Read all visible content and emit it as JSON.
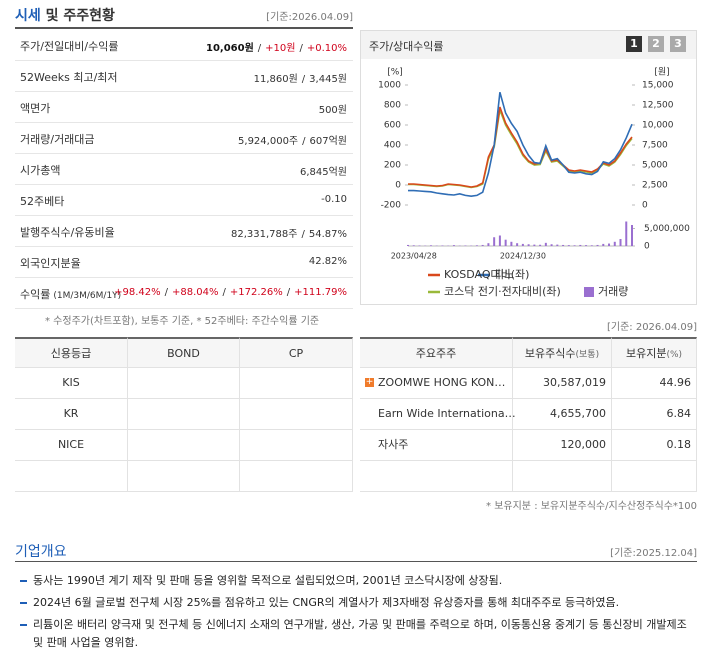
{
  "header": {
    "title_highlight": "시세",
    "title_rest": "및 주주현황",
    "date": "[기준:2026.04.09]"
  },
  "quote_table": {
    "rows": [
      {
        "label": "주가/전일대비/수익률",
        "parts": [
          {
            "text": "10,060원",
            "tone": "strong"
          },
          {
            "text": "/"
          },
          {
            "text": "+10원",
            "tone": "up"
          },
          {
            "text": "/"
          },
          {
            "text": "+0.10%",
            "tone": "up"
          }
        ]
      },
      {
        "label": "52Weeks 최고/최저",
        "parts": [
          {
            "text": "11,860원"
          },
          {
            "text": "/"
          },
          {
            "text": "3,445원"
          }
        ]
      },
      {
        "label": "액면가",
        "parts": [
          {
            "text": "500원"
          }
        ]
      },
      {
        "label": "거래량/거래대금",
        "parts": [
          {
            "text": "5,924,000주"
          },
          {
            "text": "/"
          },
          {
            "text": "607억원"
          }
        ]
      },
      {
        "label": "시가총액",
        "parts": [
          {
            "text": "6,845억원"
          }
        ]
      },
      {
        "label": "52주베타",
        "parts": [
          {
            "text": "-0.10"
          }
        ]
      },
      {
        "label": "발행주식수/유동비율",
        "parts": [
          {
            "text": "82,331,788주"
          },
          {
            "text": "/"
          },
          {
            "text": "54.87%"
          }
        ]
      },
      {
        "label": "외국인지분율",
        "parts": [
          {
            "text": "42.82%"
          }
        ]
      },
      {
        "label": "수익률",
        "sublabel": "(1M/3M/6M/1Y)",
        "parts": [
          {
            "text": "+98.42%",
            "tone": "up"
          },
          {
            "text": "/"
          },
          {
            "text": "+88.04%",
            "tone": "up"
          },
          {
            "text": "/"
          },
          {
            "text": "+172.26%",
            "tone": "up"
          },
          {
            "text": "/"
          },
          {
            "text": "+111.79%",
            "tone": "up"
          }
        ]
      }
    ],
    "note": "* 수정주가(차트포함), 보통주 기준, * 52주베타: 주간수익률 기준"
  },
  "price_chart": {
    "title": "주가/상대수익률",
    "buttons": [
      "1",
      "2",
      "3"
    ],
    "chart_data": {
      "type": "line",
      "y_unit": "[%]",
      "y2_unit": "[원]",
      "x": [
        null,
        "2023/04/28",
        null,
        null,
        null,
        null,
        null,
        null,
        null,
        null,
        null,
        null,
        null,
        null,
        null,
        null,
        null,
        null,
        null,
        null,
        "2024/12/30",
        null,
        null,
        null,
        null,
        null,
        null,
        null,
        null,
        null,
        null,
        null,
        null,
        null,
        null,
        null,
        null,
        null,
        null,
        null
      ],
      "ylim": [
        -200,
        1000
      ],
      "yticks": [
        -200,
        0,
        200,
        400,
        600,
        800,
        1000
      ],
      "y2lim": [
        0,
        15000
      ],
      "y2ticks": [
        0,
        {
          "value": 2500,
          "label": "2,500"
        },
        {
          "value": 5000,
          "label": "5,000"
        },
        {
          "value": 7500,
          "label": "7,500"
        },
        {
          "value": 10000,
          "label": "10,000"
        },
        {
          "value": 12500,
          "label": "12,500"
        },
        {
          "value": 15000,
          "label": "15,000"
        }
      ],
      "y3lim": [
        0,
        8000000
      ],
      "y3ticks": [
        0,
        {
          "value": 5000000,
          "label": "5,000,000"
        }
      ],
      "series": [
        {
          "name": "코스닥 전기·전자대비(좌)",
          "color": "#9ab93a",
          "type": "line",
          "axis": "y",
          "values": [
            5,
            5,
            0,
            -5,
            -10,
            -15,
            -10,
            5,
            0,
            -5,
            -15,
            -25,
            -15,
            10,
            260,
            380,
            750,
            600,
            500,
            410,
            295,
            230,
            200,
            205,
            340,
            230,
            240,
            190,
            140,
            130,
            140,
            130,
            120,
            150,
            210,
            190,
            230,
            305,
            395,
            465
          ]
        },
        {
          "name": "KOSDAQ대비(좌)",
          "color": "#d9481c",
          "type": "line",
          "axis": "y",
          "values": [
            10,
            10,
            5,
            0,
            -5,
            -10,
            -5,
            10,
            5,
            0,
            -10,
            -20,
            -10,
            20,
            280,
            400,
            780,
            620,
            520,
            430,
            310,
            240,
            210,
            220,
            360,
            240,
            250,
            200,
            150,
            140,
            150,
            140,
            130,
            160,
            220,
            200,
            240,
            320,
            410,
            480
          ]
        },
        {
          "name": "피노",
          "color": "#2f6db5",
          "type": "line",
          "axis": "y2",
          "values": [
            1800,
            1800,
            1750,
            1700,
            1650,
            1500,
            1400,
            1300,
            1250,
            1400,
            1200,
            1100,
            1200,
            1600,
            4000,
            7500,
            14100,
            11500,
            10200,
            9200,
            7500,
            6200,
            5300,
            5200,
            7400,
            5600,
            5800,
            5000,
            4100,
            4000,
            4100,
            3900,
            3800,
            4200,
            5400,
            5200,
            5800,
            6900,
            8400,
            10100
          ]
        },
        {
          "name": "거래량",
          "color": "#9a6fd0",
          "type": "bar",
          "axis": "y3",
          "values": [
            300000,
            200000,
            150000,
            100000,
            200000,
            100000,
            150000,
            100000,
            250000,
            100000,
            150000,
            100000,
            200000,
            300000,
            800000,
            2500000,
            3000000,
            1800000,
            1200000,
            800000,
            600000,
            500000,
            400000,
            350000,
            900000,
            500000,
            400000,
            300000,
            250000,
            200000,
            300000,
            250000,
            200000,
            300000,
            600000,
            700000,
            1200000,
            2000000,
            7000000,
            6000000
          ]
        }
      ]
    }
  },
  "shareholder_date": "[기준: 2026.04.09]",
  "credit_table": {
    "headers": [
      "신용등급",
      "BOND",
      "CP"
    ],
    "rows": [
      "KIS",
      "KR",
      "NICE"
    ]
  },
  "shareholder_table": {
    "headers": [
      {
        "text": "주요주주"
      },
      {
        "text": "보유주식수",
        "sub": "(보통)"
      },
      {
        "text": "보유지분",
        "sub": "(%)"
      }
    ],
    "rows": [
      {
        "name": "ZOOMWE HONG KON…",
        "shares": "30,587,019",
        "stake": "44.96",
        "expandable": true
      },
      {
        "name": "Earn Wide Internationa…",
        "shares": "4,655,700",
        "stake": "6.84"
      },
      {
        "name": "자사주",
        "shares": "120,000",
        "stake": "0.18"
      }
    ],
    "note": "* 보유지분 : 보유지분주식수/지수산정주식수*100"
  },
  "company": {
    "title": "기업개요",
    "date": "[기준:2025.12.04]",
    "items": [
      "동사는 1990년 계기 제작 및 판매 등을 영위할 목적으로 설립되었으며, 2001년 코스닥시장에 상장됨.",
      "2024년 6월 글로벌 전구체 시장 25%를 점유하고 있는 CNGR의 계열사가 제3자배정 유상증자를 통해 최대주주로 등극하였음.",
      "리튬이온 배터리 양극재 및 전구체 등 신에너지 소재의 연구개발, 생산, 가공 및 판매를 주력으로 하며, 이동통신용 중계기 등 통신장비 개발제조 및 판매 사업을 영위함."
    ]
  }
}
